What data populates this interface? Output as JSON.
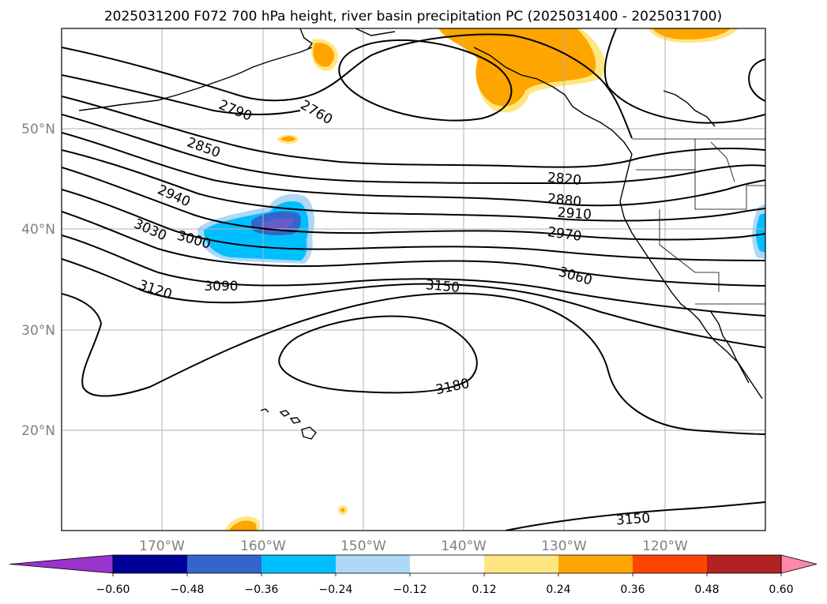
{
  "title": "2025031200 F072 700 hPa height, river basin precipitation PC (2025031400 - 2025031700)",
  "map": {
    "projection": "PlateCarree",
    "lon_range": [
      -180,
      -110
    ],
    "lat_range": [
      10,
      60
    ],
    "lat_ticks": [
      {
        "value": 50,
        "label": "50°N"
      },
      {
        "value": 40,
        "label": "40°N"
      },
      {
        "value": 30,
        "label": "30°N"
      },
      {
        "value": 20,
        "label": "20°N"
      }
    ],
    "lon_ticks": [
      {
        "value": -170,
        "label": "170°W"
      },
      {
        "value": -160,
        "label": "160°W"
      },
      {
        "value": -150,
        "label": "150°W"
      },
      {
        "value": -140,
        "label": "140°W"
      },
      {
        "value": -130,
        "label": "130°W"
      },
      {
        "value": -120,
        "label": "120°W"
      }
    ],
    "gridlines": true,
    "contour_labels": [
      "2760",
      "2790",
      "2820",
      "2850",
      "2880",
      "2910",
      "2940",
      "2970",
      "3000",
      "3030",
      "3060",
      "3090",
      "3120",
      "3150",
      "3180",
      "3150"
    ]
  },
  "colorbar": {
    "ticks": [
      "−0.60",
      "−0.48",
      "−0.36",
      "−0.24",
      "−0.12",
      "0.12",
      "0.24",
      "0.36",
      "0.48",
      "0.60"
    ],
    "colors": [
      "#9933cc",
      "#000099",
      "#3366cc",
      "#00bfff",
      "#add8f6",
      "#ffffff",
      "#ffe680",
      "#ffa500",
      "#ff4500",
      "#b22222",
      "#ff88aa"
    ]
  },
  "chart_data": {
    "type": "heatmap",
    "title": "2025031200 F072 700 hPa height, river basin precipitation PC (2025031400 - 2025031700)",
    "contour_field": "700 hPa height",
    "contour_levels": [
      2760,
      2790,
      2820,
      2850,
      2880,
      2910,
      2940,
      2970,
      3000,
      3030,
      3060,
      3090,
      3120,
      3150,
      3180
    ],
    "fill_field": "river basin precipitation PC",
    "fill_levels": [
      -0.6,
      -0.48,
      -0.36,
      -0.24,
      -0.12,
      0.12,
      0.24,
      0.36,
      0.48,
      0.6
    ],
    "xlim": [
      -180,
      -110
    ],
    "ylim": [
      10,
      60
    ]
  }
}
